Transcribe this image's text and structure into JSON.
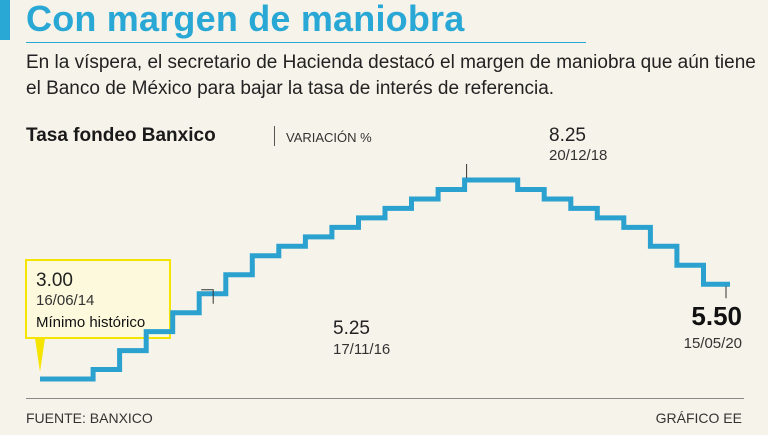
{
  "headline": "Con margen de maniobra",
  "subtitle": "En la víspera, el secretario de Hacienda destacó el margen de maniobra que aún tiene el Banco de México para bajar la tasa de interés de referencia.",
  "chart_title": "Tasa fondeo Banxico",
  "chart_unit": "VARIACIÓN %",
  "source": "FUENTE: BANXICO",
  "credit": "GRÁFICO EE",
  "colors": {
    "accent": "#29a8d6",
    "line": "#2aa1cf",
    "highlight": "#f5e400",
    "background": "#f6f3ea"
  },
  "chart_data": {
    "type": "line",
    "step": true,
    "title": "Tasa fondeo Banxico",
    "ylabel": "VARIACIÓN %",
    "xlabel": "",
    "ylim": [
      3.0,
      8.25
    ],
    "series": [
      {
        "name": "Tasa fondeo Banxico",
        "values": [
          3.0,
          3.0,
          3.25,
          3.75,
          4.25,
          4.75,
          5.25,
          5.75,
          6.25,
          6.5,
          6.75,
          7.0,
          7.25,
          7.5,
          7.75,
          8.0,
          8.25,
          8.25,
          8.0,
          7.75,
          7.5,
          7.25,
          7.0,
          6.5,
          6.0,
          5.5
        ]
      }
    ],
    "annotations": [
      {
        "value": "3.00",
        "date": "16/06/14",
        "note": "Mínimo histórico"
      },
      {
        "value": "5.25",
        "date": "17/11/16"
      },
      {
        "value": "8.25",
        "date": "20/12/18"
      },
      {
        "value": "5.50",
        "date": "15/05/20"
      }
    ]
  }
}
